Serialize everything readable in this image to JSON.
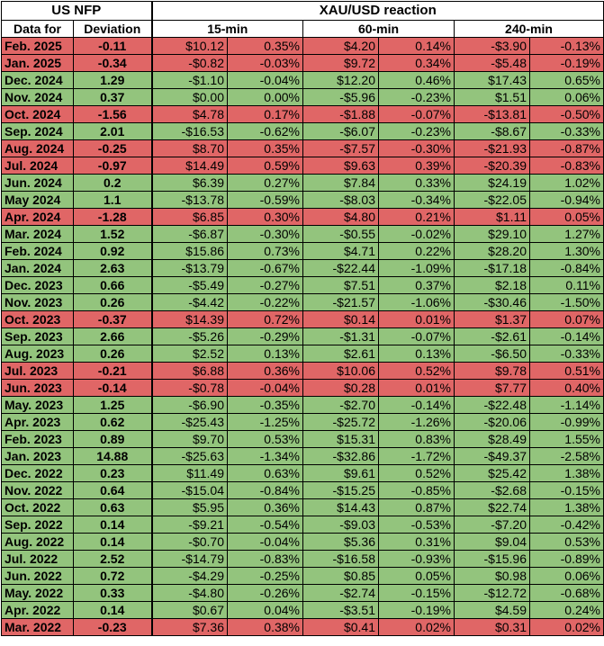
{
  "header": {
    "group_nfp": "US NFP",
    "group_reaction": "XAU/USD reaction",
    "col_date": "Data for",
    "col_deviation": "Deviation",
    "col_15": "15-min",
    "col_60": "60-min",
    "col_240": "240-min"
  },
  "colors": {
    "positive": "#93c47d",
    "negative": "#e06666"
  },
  "rows": [
    {
      "date": "Feb. 2025",
      "dev": "-0.11",
      "sign": "neg",
      "m15": "$10.12",
      "p15": "0.35%",
      "m60": "$4.20",
      "p60": "0.14%",
      "m240": "-$3.90",
      "p240": "-0.13%"
    },
    {
      "date": "Jan. 2025",
      "dev": "-0.34",
      "sign": "neg",
      "m15": "-$0.82",
      "p15": "-0.03%",
      "m60": "$9.72",
      "p60": "0.34%",
      "m240": "-$5.48",
      "p240": "-0.19%"
    },
    {
      "date": "Dec. 2024",
      "dev": "1.29",
      "sign": "pos",
      "m15": "-$1.10",
      "p15": "-0.04%",
      "m60": "$12.20",
      "p60": "0.46%",
      "m240": "$17.43",
      "p240": "0.65%"
    },
    {
      "date": "Nov. 2024",
      "dev": "0.37",
      "sign": "pos",
      "m15": "$0.00",
      "p15": "0.00%",
      "m60": "-$5.96",
      "p60": "-0.23%",
      "m240": "$1.51",
      "p240": "0.06%"
    },
    {
      "date": "Oct. 2024",
      "dev": "-1.56",
      "sign": "neg",
      "m15": "$4.78",
      "p15": "0.17%",
      "m60": "-$1.88",
      "p60": "-0.07%",
      "m240": "-$13.81",
      "p240": "-0.50%"
    },
    {
      "date": "Sep. 2024",
      "dev": "2.01",
      "sign": "pos",
      "m15": "-$16.53",
      "p15": "-0.62%",
      "m60": "-$6.07",
      "p60": "-0.23%",
      "m240": "-$8.67",
      "p240": "-0.33%"
    },
    {
      "date": "Aug. 2024",
      "dev": "-0.25",
      "sign": "neg",
      "m15": "$8.70",
      "p15": "0.35%",
      "m60": "-$7.57",
      "p60": "-0.30%",
      "m240": "-$21.93",
      "p240": "-0.87%"
    },
    {
      "date": "Jul. 2024",
      "dev": "-0.97",
      "sign": "neg",
      "m15": "$14.49",
      "p15": "0.59%",
      "m60": "$9.63",
      "p60": "0.39%",
      "m240": "-$20.39",
      "p240": "-0.83%"
    },
    {
      "date": "Jun. 2024",
      "dev": "0.2",
      "sign": "pos",
      "m15": "$6.39",
      "p15": "0.27%",
      "m60": "$7.84",
      "p60": "0.33%",
      "m240": "$24.19",
      "p240": "1.02%"
    },
    {
      "date": "May 2024",
      "dev": "1.1",
      "sign": "pos",
      "m15": "-$13.78",
      "p15": "-0.59%",
      "m60": "-$8.03",
      "p60": "-0.34%",
      "m240": "-$22.05",
      "p240": "-0.94%"
    },
    {
      "date": "Apr. 2024",
      "dev": "-1.28",
      "sign": "neg",
      "m15": "$6.85",
      "p15": "0.30%",
      "m60": "$4.80",
      "p60": "0.21%",
      "m240": "$1.11",
      "p240": "0.05%"
    },
    {
      "date": "Mar. 2024",
      "dev": "1.52",
      "sign": "pos",
      "m15": "-$6.87",
      "p15": "-0.30%",
      "m60": "-$0.55",
      "p60": "-0.02%",
      "m240": "$29.10",
      "p240": "1.27%"
    },
    {
      "date": "Feb. 2024",
      "dev": "0.92",
      "sign": "pos",
      "m15": "$15.86",
      "p15": "0.73%",
      "m60": "$4.71",
      "p60": "0.22%",
      "m240": "$28.20",
      "p240": "1.30%"
    },
    {
      "date": "Jan. 2024",
      "dev": "2.63",
      "sign": "pos",
      "m15": "-$13.79",
      "p15": "-0.67%",
      "m60": "-$22.44",
      "p60": "-1.09%",
      "m240": "-$17.18",
      "p240": "-0.84%"
    },
    {
      "date": "Dec. 2023",
      "dev": "0.66",
      "sign": "pos",
      "m15": "-$5.49",
      "p15": "-0.27%",
      "m60": "$7.51",
      "p60": "0.37%",
      "m240": "$2.18",
      "p240": "0.11%"
    },
    {
      "date": "Nov. 2023",
      "dev": "0.26",
      "sign": "pos",
      "m15": "-$4.42",
      "p15": "-0.22%",
      "m60": "-$21.57",
      "p60": "-1.06%",
      "m240": "-$30.46",
      "p240": "-1.50%"
    },
    {
      "date": "Oct. 2023",
      "dev": "-0.37",
      "sign": "neg",
      "m15": "$14.39",
      "p15": "0.72%",
      "m60": "$0.14",
      "p60": "0.01%",
      "m240": "$1.37",
      "p240": "0.07%"
    },
    {
      "date": "Sep. 2023",
      "dev": "2.66",
      "sign": "pos",
      "m15": "-$5.26",
      "p15": "-0.29%",
      "m60": "-$1.31",
      "p60": "-0.07%",
      "m240": "-$2.61",
      "p240": "-0.14%"
    },
    {
      "date": "Aug. 2023",
      "dev": "0.26",
      "sign": "pos",
      "m15": "$2.52",
      "p15": "0.13%",
      "m60": "$2.61",
      "p60": "0.13%",
      "m240": "-$6.50",
      "p240": "-0.33%"
    },
    {
      "date": "Jul. 2023",
      "dev": "-0.21",
      "sign": "neg",
      "m15": "$6.88",
      "p15": "0.36%",
      "m60": "$10.06",
      "p60": "0.52%",
      "m240": "$9.78",
      "p240": "0.51%"
    },
    {
      "date": "Jun. 2023",
      "dev": "-0.14",
      "sign": "neg",
      "m15": "-$0.78",
      "p15": "-0.04%",
      "m60": "$0.28",
      "p60": "0.01%",
      "m240": "$7.77",
      "p240": "0.40%"
    },
    {
      "date": "May. 2023",
      "dev": "1.25",
      "sign": "pos",
      "m15": "-$6.90",
      "p15": "-0.35%",
      "m60": "-$2.70",
      "p60": "-0.14%",
      "m240": "-$22.48",
      "p240": "-1.14%"
    },
    {
      "date": "Apr. 2023",
      "dev": "0.62",
      "sign": "pos",
      "m15": "-$25.43",
      "p15": "-1.25%",
      "m60": "-$25.72",
      "p60": "-1.26%",
      "m240": "-$20.06",
      "p240": "-0.99%"
    },
    {
      "date": "Feb. 2023",
      "dev": "0.89",
      "sign": "pos",
      "m15": "$9.70",
      "p15": "0.53%",
      "m60": "$15.31",
      "p60": "0.83%",
      "m240": "$28.49",
      "p240": "1.55%"
    },
    {
      "date": "Jan. 2023",
      "dev": "14.88",
      "sign": "pos",
      "m15": "-$25.63",
      "p15": "-1.34%",
      "m60": "-$32.86",
      "p60": "-1.72%",
      "m240": "-$49.37",
      "p240": "-2.58%"
    },
    {
      "date": "Dec. 2022",
      "dev": "0.23",
      "sign": "pos",
      "m15": "$11.49",
      "p15": "0.63%",
      "m60": "$9.61",
      "p60": "0.52%",
      "m240": "$25.42",
      "p240": "1.38%"
    },
    {
      "date": "Nov. 2022",
      "dev": "0.64",
      "sign": "pos",
      "m15": "-$15.04",
      "p15": "-0.84%",
      "m60": "-$15.25",
      "p60": "-0.85%",
      "m240": "-$2.68",
      "p240": "-0.15%"
    },
    {
      "date": "Oct. 2022",
      "dev": "0.63",
      "sign": "pos",
      "m15": "$5.95",
      "p15": "0.36%",
      "m60": "$14.43",
      "p60": "0.87%",
      "m240": "$22.74",
      "p240": "1.38%"
    },
    {
      "date": "Sep. 2022",
      "dev": "0.14",
      "sign": "pos",
      "m15": "-$9.21",
      "p15": "-0.54%",
      "m60": "-$9.03",
      "p60": "-0.53%",
      "m240": "-$7.20",
      "p240": "-0.42%"
    },
    {
      "date": "Aug. 2022",
      "dev": "0.14",
      "sign": "pos",
      "m15": "-$0.70",
      "p15": "-0.04%",
      "m60": "$5.36",
      "p60": "0.31%",
      "m240": "$9.04",
      "p240": "0.53%"
    },
    {
      "date": "Jul. 2022",
      "dev": "2.52",
      "sign": "pos",
      "m15": "-$14.79",
      "p15": "-0.83%",
      "m60": "-$16.58",
      "p60": "-0.93%",
      "m240": "-$15.96",
      "p240": "-0.89%"
    },
    {
      "date": "Jun. 2022",
      "dev": "0.72",
      "sign": "pos",
      "m15": "-$4.29",
      "p15": "-0.25%",
      "m60": "$0.85",
      "p60": "0.05%",
      "m240": "$0.98",
      "p240": "0.06%"
    },
    {
      "date": "May. 2022",
      "dev": "0.33",
      "sign": "pos",
      "m15": "-$4.80",
      "p15": "-0.26%",
      "m60": "-$2.74",
      "p60": "-0.15%",
      "m240": "-$12.72",
      "p240": "-0.68%"
    },
    {
      "date": "Apr. 2022",
      "dev": "0.14",
      "sign": "pos",
      "m15": "$0.67",
      "p15": "0.04%",
      "m60": "-$3.51",
      "p60": "-0.19%",
      "m240": "$4.59",
      "p240": "0.24%"
    },
    {
      "date": "Mar. 2022",
      "dev": "-0.23",
      "sign": "neg",
      "m15": "$7.36",
      "p15": "0.38%",
      "m60": "$0.41",
      "p60": "0.02%",
      "m240": "$0.31",
      "p240": "0.02%"
    }
  ]
}
